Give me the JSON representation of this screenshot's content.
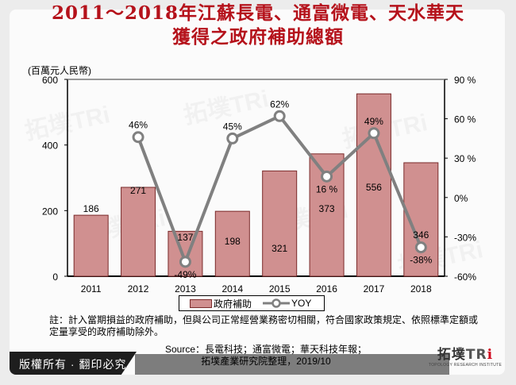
{
  "title": {
    "line1": "2011～2018年江蘇長電、通富微電、天水華天",
    "line2": "獲得之政府補助總額"
  },
  "unit_label": "(百萬元人民幣)",
  "legend": {
    "bar_label": "政府補助",
    "line_label": "YOY"
  },
  "note": "註：計入當期損益的政府補助，但與公司正常經營業務密切相關，符合國家政策規定、依照標準定額或定量享受的政府補助除外。",
  "source": {
    "line1": "Source：長電科技；通富微電；華天科技年報；",
    "line2": "拓墣產業研究院整理，2019/10"
  },
  "footer": {
    "copyright": "版權所有 · 翻印必究",
    "logo_text": "拓墣TRi",
    "logo_sub": "TOPOLOGY RESEARCH INSTITUTE"
  },
  "colors": {
    "title": "#b5121b",
    "bar_fill": "#d09090",
    "bar_border": "#7a2a2a",
    "line": "#808080"
  },
  "chart_data": {
    "type": "bar",
    "title": "2011～2018年江蘇長電、通富微電、天水華天獲得之政府補助總額",
    "xlabel": "",
    "ylabel": "(百萬元人民幣)",
    "categories": [
      "2011",
      "2012",
      "2013",
      "2014",
      "2015",
      "2016",
      "2017",
      "2018"
    ],
    "series": [
      {
        "name": "政府補助",
        "type": "bar",
        "axis": "left",
        "values": [
          186,
          271,
          137,
          198,
          321,
          373,
          556,
          346
        ],
        "labels": [
          "186",
          "271",
          "137",
          "198",
          "321",
          "373",
          "556",
          "346"
        ]
      },
      {
        "name": "YOY",
        "type": "line",
        "axis": "right",
        "values": [
          null,
          46,
          -49,
          45,
          62,
          16,
          49,
          -38
        ],
        "labels": [
          "",
          "46%",
          "-49%",
          "45%",
          "62%",
          "16 %",
          "49%",
          "-38%"
        ]
      }
    ],
    "ylim": [
      0,
      600
    ],
    "yticks": [
      "0",
      "200",
      "400",
      "600"
    ],
    "y2lim": [
      -60,
      90
    ],
    "y2ticks": [
      "-60%",
      "-30%",
      "0%",
      "30 %",
      "60 %",
      "90 %"
    ],
    "grid": false,
    "legend_position": "bottom"
  }
}
